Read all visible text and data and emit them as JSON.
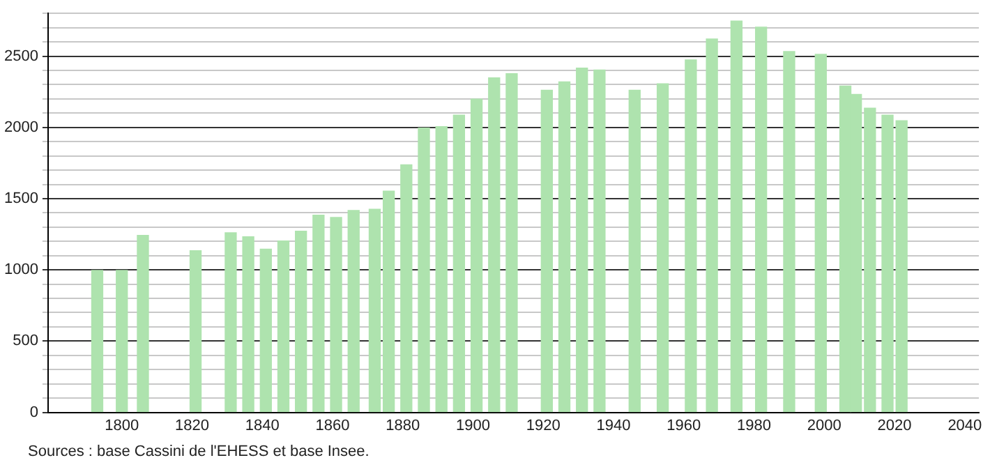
{
  "chart_data": {
    "type": "bar",
    "color": "#aee3ae",
    "x": [
      1793,
      1800,
      1806,
      1821,
      1831,
      1836,
      1841,
      1846,
      1851,
      1856,
      1861,
      1866,
      1872,
      1876,
      1881,
      1886,
      1891,
      1896,
      1901,
      1906,
      1911,
      1921,
      1926,
      1931,
      1936,
      1946,
      1954,
      1962,
      1968,
      1975,
      1982,
      1990,
      1999,
      2006,
      2009,
      2013,
      2018,
      2022
    ],
    "values": [
      996,
      996,
      1242,
      1135,
      1261,
      1232,
      1145,
      1203,
      1271,
      1384,
      1368,
      1417,
      1426,
      1553,
      1737,
      1995,
      2005,
      2086,
      2199,
      2348,
      2377,
      2261,
      2319,
      2416,
      2403,
      2261,
      2306,
      2474,
      2620,
      2746,
      2704,
      2532,
      2513,
      2290,
      2232,
      2135,
      2086,
      2047
    ],
    "xlim": [
      1779,
      2044
    ],
    "xticks": [
      1800,
      1820,
      1840,
      1860,
      1880,
      1900,
      1920,
      1940,
      1960,
      1980,
      2000,
      2020,
      2040
    ],
    "ylim": [
      0,
      2800
    ],
    "yticks": [
      0,
      {
        "value": 100,
        "label": null
      },
      {
        "value": 200,
        "label": null
      },
      {
        "value": 300,
        "label": null
      },
      {
        "value": 400,
        "label": null
      },
      500,
      {
        "value": 600,
        "label": null
      },
      {
        "value": 700,
        "label": null
      },
      {
        "value": 800,
        "label": null
      },
      {
        "value": 900,
        "label": null
      },
      1000,
      {
        "value": 1100,
        "label": null
      },
      {
        "value": 1200,
        "label": null
      },
      {
        "value": 1300,
        "label": null
      },
      {
        "value": 1400,
        "label": null
      },
      1500,
      {
        "value": 1600,
        "label": null
      },
      {
        "value": 1700,
        "label": null
      },
      {
        "value": 1800,
        "label": null
      },
      {
        "value": 1900,
        "label": null
      },
      2000,
      {
        "value": 2100,
        "label": null
      },
      {
        "value": 2200,
        "label": null
      },
      {
        "value": 2300,
        "label": null
      },
      {
        "value": 2400,
        "label": null
      },
      2500,
      {
        "value": 2600,
        "label": null
      },
      {
        "value": 2700,
        "label": null
      },
      {
        "value": 2800,
        "label": null
      }
    ],
    "grid": "y",
    "legend": false,
    "annotations": [
      "Sources : base Cassini de l'EHESS et base Insee."
    ]
  }
}
